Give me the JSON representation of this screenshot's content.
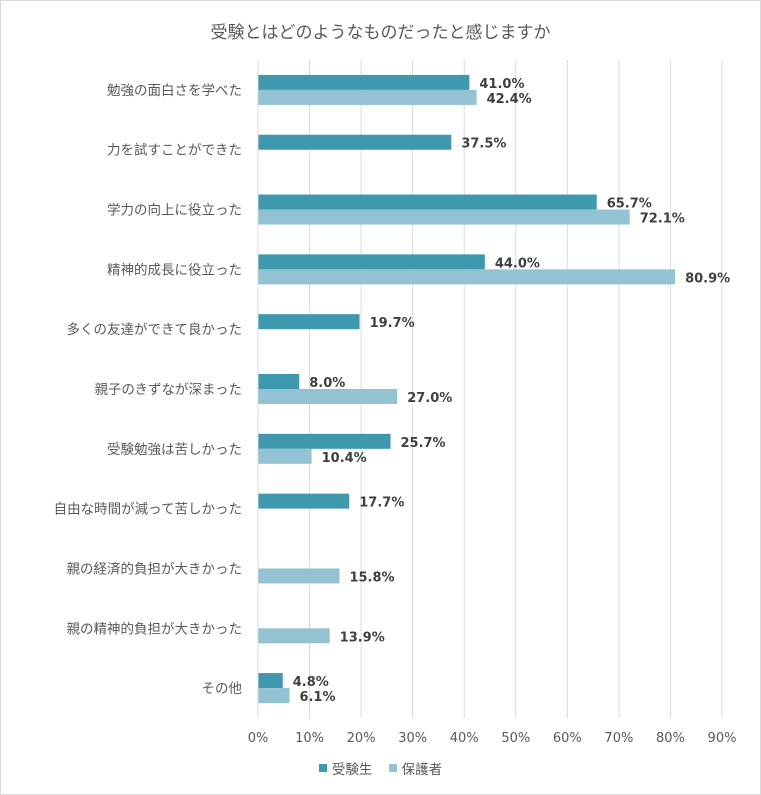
{
  "chart_data": {
    "type": "bar",
    "orientation": "horizontal",
    "title": "受験とはどのようなものだったと感じますか",
    "categories": [
      "勉強の面白さを学べた",
      "力を試すことができた",
      "学力の向上に役立った",
      "精神的成長に役立った",
      "多くの友達ができて良かった",
      "親子のきずなが深まった",
      "受験勉強は苦しかった",
      "自由な時間が減って苦しかった",
      "親の経済的負担が大きかった",
      "親の精神的負担が大きかった",
      "その他"
    ],
    "series": [
      {
        "name": "受験生",
        "color": "#3e99ae",
        "values": [
          41.0,
          37.5,
          65.7,
          44.0,
          19.7,
          8.0,
          25.7,
          17.7,
          null,
          null,
          4.8
        ],
        "labels": [
          "41.0%",
          "37.5%",
          "65.7%",
          "44.0%",
          "19.7%",
          "8.0%",
          "25.7%",
          "17.7%",
          null,
          null,
          "4.8%"
        ]
      },
      {
        "name": "保護者",
        "color": "#93c3d3",
        "values": [
          42.4,
          null,
          72.1,
          80.9,
          null,
          27.0,
          10.4,
          null,
          15.8,
          13.9,
          6.1
        ],
        "labels": [
          "42.4%",
          null,
          "72.1%",
          "80.9%",
          null,
          "27.0%",
          "10.4%",
          null,
          "15.8%",
          "13.9%",
          "6.1%"
        ]
      }
    ],
    "xlim": [
      0,
      90
    ],
    "xticks": [
      0,
      10,
      20,
      30,
      40,
      50,
      60,
      70,
      80,
      90
    ],
    "xtick_labels": [
      "0%",
      "10%",
      "20%",
      "30%",
      "40%",
      "50%",
      "60%",
      "70%",
      "80%",
      "90%"
    ],
    "grid": true,
    "legend_position": "bottom"
  }
}
